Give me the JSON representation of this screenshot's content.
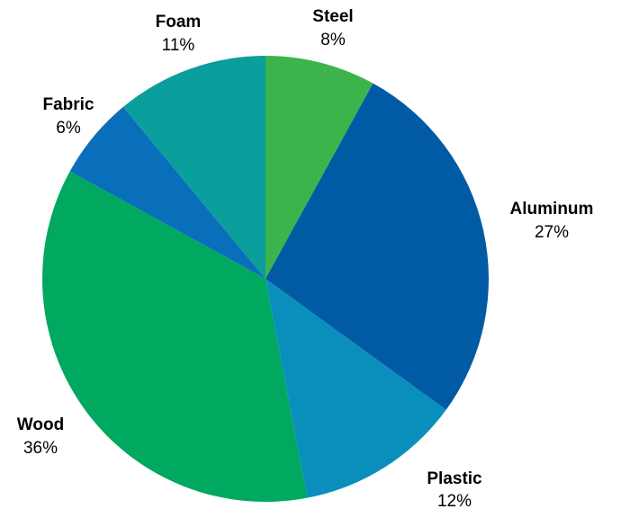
{
  "chart_data": {
    "type": "pie",
    "title": "",
    "start_angle_deg": 0,
    "direction": "clockwise",
    "slices": [
      {
        "label": "Steel",
        "value": 8,
        "value_label": "8%",
        "color": "#3cb44b"
      },
      {
        "label": "Aluminum",
        "value": 27,
        "value_label": "27%",
        "color": "#005ba4"
      },
      {
        "label": "Plastic",
        "value": 12,
        "value_label": "12%",
        "color": "#0a8fbd"
      },
      {
        "label": "Wood",
        "value": 36,
        "value_label": "36%",
        "color": "#00a860"
      },
      {
        "label": "Fabric",
        "value": 6,
        "value_label": "6%",
        "color": "#0a6fba"
      },
      {
        "label": "Foam",
        "value": 11,
        "value_label": "11%",
        "color": "#0a9e9c"
      }
    ]
  }
}
